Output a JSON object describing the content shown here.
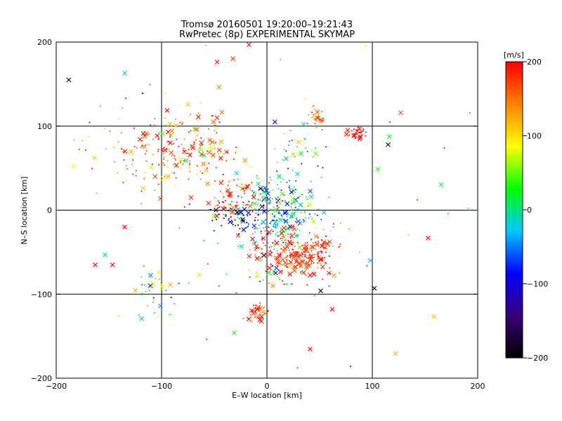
{
  "chart_data": {
    "type": "scatter",
    "title": "Tromsø 20160501 19:20:00–19:21:43",
    "subtitle": "RwPretec (8p) EXPERIMENTAL SKYMAP",
    "xlabel": "E–W location [km]",
    "ylabel": "N–S location [km]",
    "xlim": [
      -200,
      200
    ],
    "ylim": [
      -200,
      200
    ],
    "xticks": [
      -200,
      -100,
      0,
      100,
      200
    ],
    "yticks": [
      -200,
      -100,
      0,
      100,
      200
    ],
    "xtick_labels": [
      "−200",
      "−100",
      "0",
      "100",
      "200"
    ],
    "ytick_labels": [
      "−200",
      "−100",
      "0",
      "100",
      "200"
    ],
    "grid_lines": [
      -100,
      0,
      100
    ],
    "grid": true,
    "marker": "cross",
    "colorbar": {
      "label": "[m/s]",
      "range": [
        -200,
        200
      ],
      "ticks": [
        200,
        100,
        0,
        -100,
        -200
      ],
      "tick_labels": [
        "200",
        "100",
        "0",
        "−100",
        "−200"
      ],
      "colors": [
        "#000000",
        "#3a0078",
        "#0000ff",
        "#00c8ff",
        "#00ff00",
        "#ffff00",
        "#ff8000",
        "#ff0000"
      ]
    },
    "clusters": [
      {
        "x": 10,
        "y": 0,
        "sx": 22,
        "sy": 22,
        "n": 300,
        "v": -20,
        "vs": 50
      },
      {
        "x": 22,
        "y": -48,
        "sx": 18,
        "sy": 15,
        "n": 170,
        "v": 185,
        "vs": 25
      },
      {
        "x": 45,
        "y": -52,
        "sx": 12,
        "sy": 12,
        "n": 60,
        "v": 175,
        "vs": 30
      },
      {
        "x": -30,
        "y": 15,
        "sx": 14,
        "sy": 12,
        "n": 70,
        "v": 180,
        "vs": 30
      },
      {
        "x": -30,
        "y": -10,
        "sx": 12,
        "sy": 10,
        "n": 50,
        "v": -150,
        "vs": 60
      },
      {
        "x": -100,
        "y": 70,
        "sx": 35,
        "sy": 25,
        "n": 170,
        "v": 160,
        "vs": 50
      },
      {
        "x": -60,
        "y": 78,
        "sx": 22,
        "sy": 20,
        "n": 70,
        "v": 110,
        "vs": 70
      },
      {
        "x": 47,
        "y": 110,
        "sx": 5,
        "sy": 6,
        "n": 40,
        "v": 150,
        "vs": 40
      },
      {
        "x": 85,
        "y": 92,
        "sx": 4,
        "sy": 4,
        "n": 30,
        "v": 200,
        "vs": 5
      },
      {
        "x": 28,
        "y": 75,
        "sx": 12,
        "sy": 12,
        "n": 35,
        "v": 30,
        "vs": 80
      },
      {
        "x": -10,
        "y": -122,
        "sx": 5,
        "sy": 5,
        "n": 40,
        "v": 180,
        "vs": 40
      },
      {
        "x": -110,
        "y": -95,
        "sx": 15,
        "sy": 15,
        "n": 35,
        "v": 50,
        "vs": 80
      },
      {
        "x": 10,
        "y": -80,
        "sx": 14,
        "sy": 10,
        "n": 40,
        "v": 100,
        "vs": 120
      },
      {
        "x": 0,
        "y": 20,
        "sx": 140,
        "sy": 120,
        "n": 80,
        "v": 80,
        "vs": 140
      }
    ],
    "highlights": [
      {
        "x": -17,
        "y": 197,
        "v": 200
      },
      {
        "x": -135,
        "y": 163,
        "v": -30
      },
      {
        "x": -188,
        "y": 155,
        "v": -200
      },
      {
        "x": 127,
        "y": 116,
        "v": 170
      },
      {
        "x": 115,
        "y": 78,
        "v": -200
      },
      {
        "x": 102,
        "y": -93,
        "v": -200
      },
      {
        "x": 51,
        "y": -96,
        "v": -200
      },
      {
        "x": -163,
        "y": -65,
        "v": 200
      },
      {
        "x": -135,
        "y": -20,
        "v": 200
      },
      {
        "x": -119,
        "y": -129,
        "v": -30
      },
      {
        "x": -31,
        "y": -146,
        "v": 30
      },
      {
        "x": 62,
        "y": -118,
        "v": 200
      },
      {
        "x": 153,
        "y": -33,
        "v": 200
      },
      {
        "x": 98,
        "y": -60,
        "v": -30
      }
    ]
  }
}
